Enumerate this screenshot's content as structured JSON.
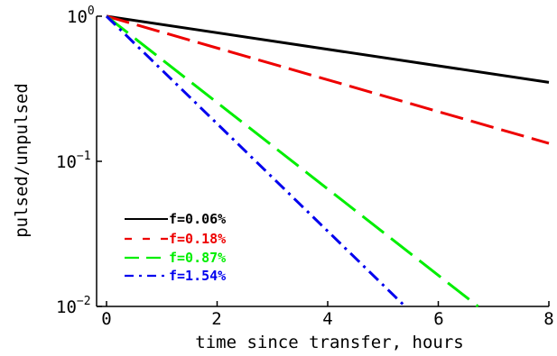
{
  "chart_data": {
    "type": "line",
    "xlabel": "time since transfer, hours",
    "ylabel": "pulsed/unpulsed",
    "x_ticks": [
      0,
      2,
      4,
      6,
      8
    ],
    "y_ticks": [
      {
        "base": "10",
        "exp": "0",
        "value": 1
      },
      {
        "base": "10",
        "exp": "−1",
        "value": 0.1
      },
      {
        "base": "10",
        "exp": "−2",
        "value": 0.01
      }
    ],
    "xlim": [
      0,
      8
    ],
    "ylim": [
      0.01,
      1
    ],
    "y_scale": "log",
    "grid": false,
    "legend_position": "bottom-left",
    "series": [
      {
        "name": "f=0.06%",
        "color": "#000000",
        "dash": "solid",
        "x": [
          0,
          8
        ],
        "y": [
          1,
          0.35
        ]
      },
      {
        "name": "f=0.18%",
        "color": "#ee0000",
        "dash": "dashed",
        "x": [
          0,
          8
        ],
        "y": [
          1,
          0.133
        ]
      },
      {
        "name": "f=0.87%",
        "color": "#00ee00",
        "dash": "long-dashed",
        "x": [
          0,
          6.72
        ],
        "y": [
          1,
          0.01
        ]
      },
      {
        "name": "f=1.54%",
        "color": "#0000ee",
        "dash": "dash-dot",
        "x": [
          0,
          5.4
        ],
        "y": [
          1,
          0.01
        ]
      }
    ]
  }
}
